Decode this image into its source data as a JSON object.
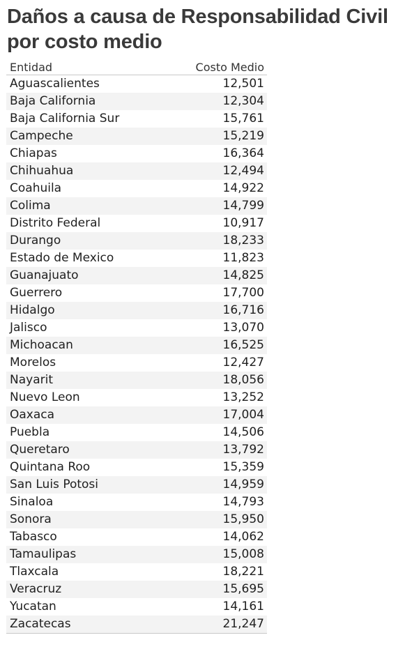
{
  "chart_data": {
    "type": "table",
    "title": "Daños a causa de Responsabilidad Civil por costo medio",
    "columns": [
      "Entidad",
      "Costo Medio"
    ],
    "rows": [
      {
        "entidad": "Aguascalientes",
        "costo_medio": "12,501"
      },
      {
        "entidad": "Baja California",
        "costo_medio": "12,304"
      },
      {
        "entidad": "Baja California Sur",
        "costo_medio": "15,761"
      },
      {
        "entidad": "Campeche",
        "costo_medio": "15,219"
      },
      {
        "entidad": "Chiapas",
        "costo_medio": "16,364"
      },
      {
        "entidad": "Chihuahua",
        "costo_medio": "12,494"
      },
      {
        "entidad": "Coahuila",
        "costo_medio": "14,922"
      },
      {
        "entidad": "Colima",
        "costo_medio": "14,799"
      },
      {
        "entidad": "Distrito Federal",
        "costo_medio": "10,917"
      },
      {
        "entidad": "Durango",
        "costo_medio": "18,233"
      },
      {
        "entidad": "Estado de Mexico",
        "costo_medio": "11,823"
      },
      {
        "entidad": "Guanajuato",
        "costo_medio": "14,825"
      },
      {
        "entidad": "Guerrero",
        "costo_medio": "17,700"
      },
      {
        "entidad": "Hidalgo",
        "costo_medio": "16,716"
      },
      {
        "entidad": "Jalisco",
        "costo_medio": "13,070"
      },
      {
        "entidad": "Michoacan",
        "costo_medio": "16,525"
      },
      {
        "entidad": "Morelos",
        "costo_medio": "12,427"
      },
      {
        "entidad": "Nayarit",
        "costo_medio": "18,056"
      },
      {
        "entidad": "Nuevo Leon",
        "costo_medio": "13,252"
      },
      {
        "entidad": "Oaxaca",
        "costo_medio": "17,004"
      },
      {
        "entidad": "Puebla",
        "costo_medio": "14,506"
      },
      {
        "entidad": "Queretaro",
        "costo_medio": "13,792"
      },
      {
        "entidad": "Quintana Roo",
        "costo_medio": "15,359"
      },
      {
        "entidad": "San Luis Potosi",
        "costo_medio": "14,959"
      },
      {
        "entidad": "Sinaloa",
        "costo_medio": "14,793"
      },
      {
        "entidad": "Sonora",
        "costo_medio": "15,950"
      },
      {
        "entidad": "Tabasco",
        "costo_medio": "14,062"
      },
      {
        "entidad": "Tamaulipas",
        "costo_medio": "15,008"
      },
      {
        "entidad": "Tlaxcala",
        "costo_medio": "18,221"
      },
      {
        "entidad": "Veracruz",
        "costo_medio": "15,695"
      },
      {
        "entidad": "Yucatan",
        "costo_medio": "14,161"
      },
      {
        "entidad": "Zacatecas",
        "costo_medio": "21,247"
      }
    ]
  }
}
